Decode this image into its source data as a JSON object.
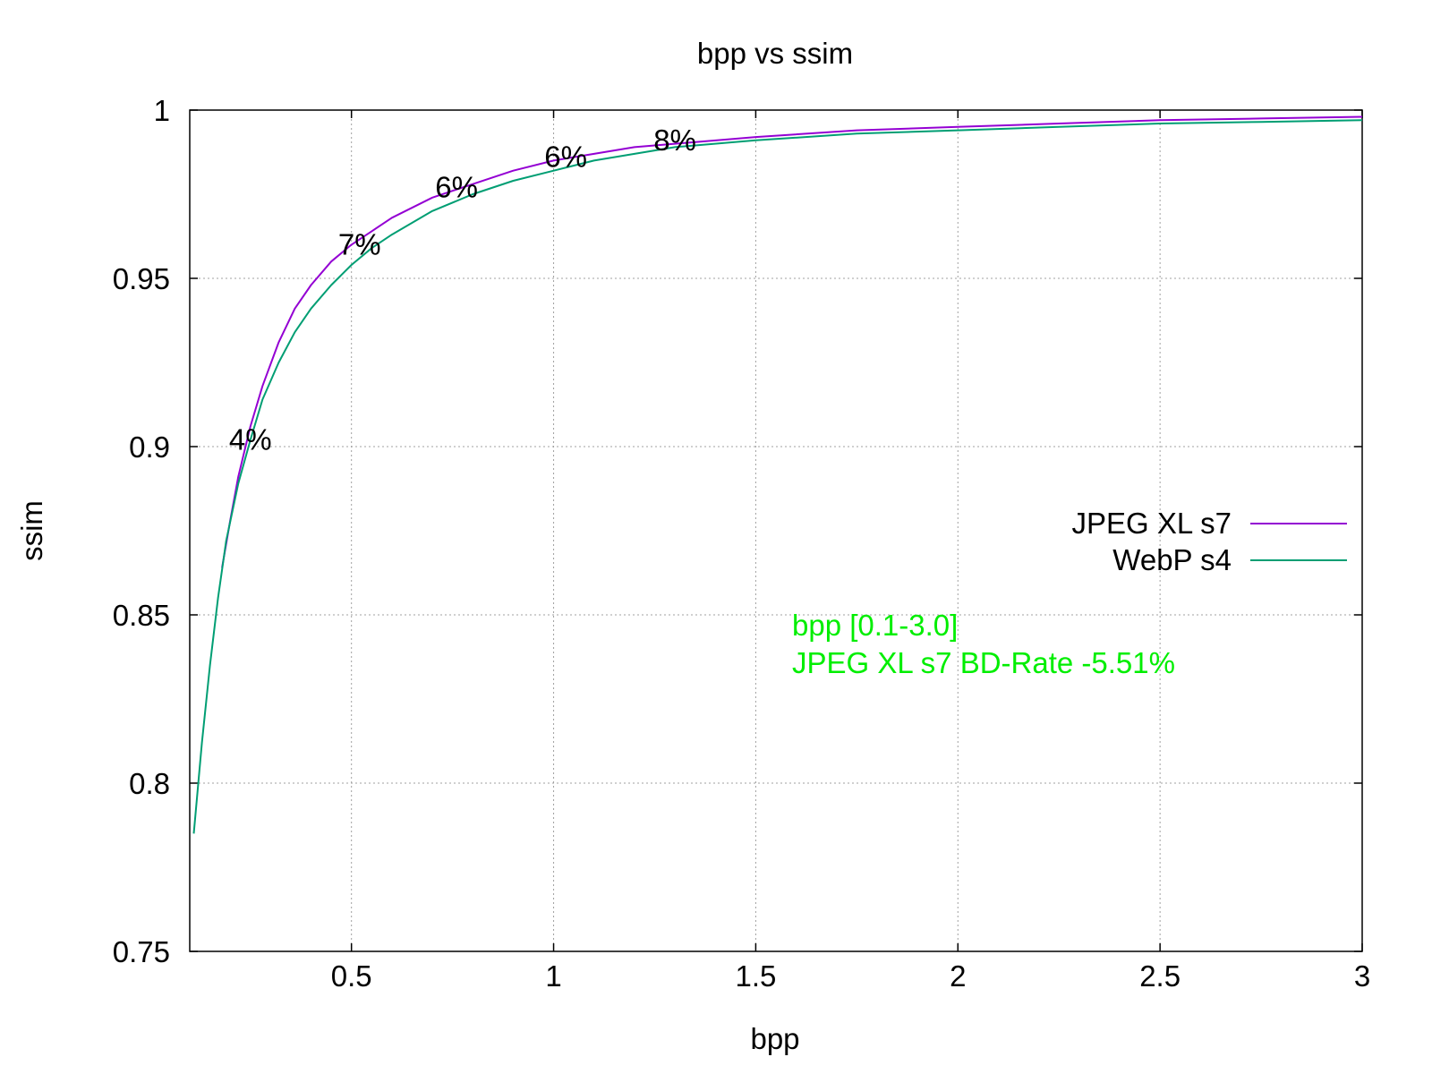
{
  "chart_data": {
    "type": "line",
    "title": "bpp vs ssim",
    "xlabel": "bpp",
    "ylabel": "ssim",
    "xlim": [
      0.1,
      3.0
    ],
    "ylim": [
      0.75,
      1.0
    ],
    "xticks": [
      0.5,
      1,
      1.5,
      2,
      2.5,
      3
    ],
    "xtick_labels": [
      "0.5",
      "1",
      "1.5",
      "2",
      "2.5",
      "3"
    ],
    "yticks": [
      0.75,
      0.8,
      0.85,
      0.9,
      0.95,
      1.0
    ],
    "ytick_labels": [
      "0.75",
      "0.8",
      "0.85",
      "0.9",
      "0.95",
      "1"
    ],
    "grid": true,
    "legend_position": "right",
    "series": [
      {
        "name": "JPEG XL s7",
        "color": "#9400d3",
        "x": [
          0.18,
          0.2,
          0.22,
          0.25,
          0.28,
          0.32,
          0.36,
          0.4,
          0.45,
          0.5,
          0.55,
          0.6,
          0.7,
          0.8,
          0.9,
          1.0,
          1.1,
          1.2,
          1.3,
          1.5,
          1.75,
          2.0,
          2.25,
          2.5,
          2.75,
          3.0
        ],
        "y": [
          0.864,
          0.878,
          0.891,
          0.906,
          0.918,
          0.931,
          0.941,
          0.948,
          0.955,
          0.96,
          0.964,
          0.968,
          0.974,
          0.978,
          0.982,
          0.985,
          0.987,
          0.989,
          0.99,
          0.992,
          0.994,
          0.995,
          0.996,
          0.997,
          0.9975,
          0.998
        ]
      },
      {
        "name": "WebP s4",
        "color": "#009e73",
        "x": [
          0.11,
          0.13,
          0.15,
          0.17,
          0.19,
          0.22,
          0.25,
          0.28,
          0.32,
          0.36,
          0.4,
          0.45,
          0.5,
          0.55,
          0.6,
          0.7,
          0.8,
          0.9,
          1.0,
          1.1,
          1.2,
          1.3,
          1.5,
          1.75,
          2.0,
          2.25,
          2.5,
          2.75,
          3.0
        ],
        "y": [
          0.785,
          0.812,
          0.835,
          0.855,
          0.872,
          0.889,
          0.902,
          0.914,
          0.925,
          0.934,
          0.941,
          0.948,
          0.954,
          0.959,
          0.963,
          0.97,
          0.975,
          0.979,
          0.982,
          0.985,
          0.987,
          0.989,
          0.991,
          0.993,
          0.994,
          0.995,
          0.996,
          0.9965,
          0.997
        ]
      }
    ],
    "annotations": [
      {
        "text": "4%",
        "x": 0.25,
        "y": 0.902
      },
      {
        "text": "7%",
        "x": 0.52,
        "y": 0.96
      },
      {
        "text": "6%",
        "x": 0.76,
        "y": 0.977
      },
      {
        "text": "6%",
        "x": 1.03,
        "y": 0.986
      },
      {
        "text": "8%",
        "x": 1.3,
        "y": 0.991
      }
    ],
    "note": {
      "lines": [
        "bpp [0.1-3.0]",
        "JPEG XL s7 BD-Rate -5.51%"
      ],
      "color": "#00ee00"
    }
  }
}
